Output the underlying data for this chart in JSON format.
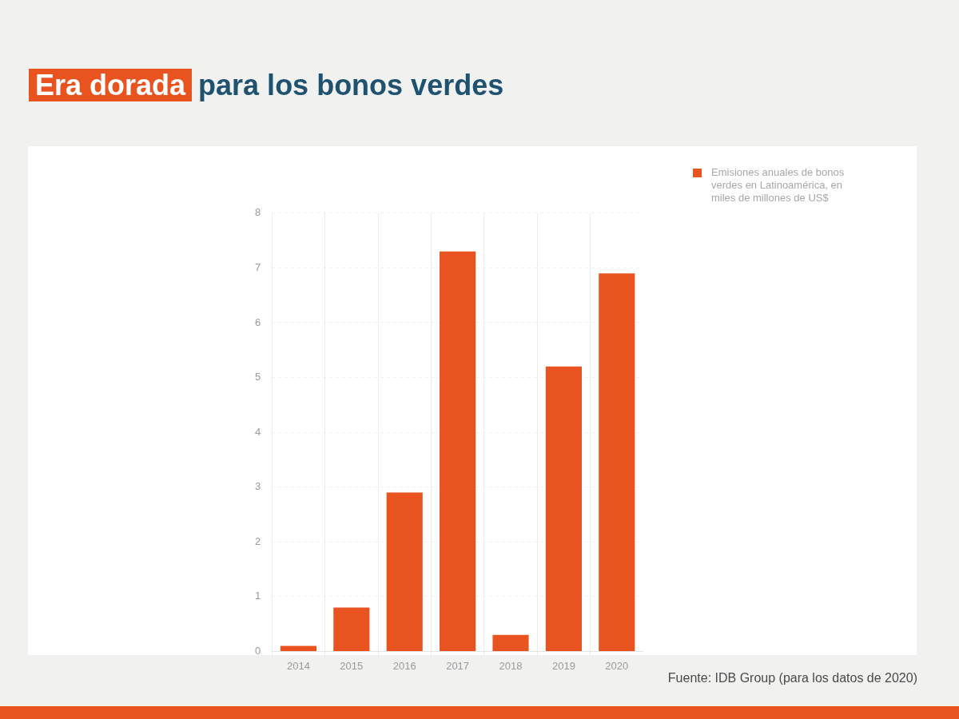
{
  "chart_data": {
    "type": "bar",
    "title": "Era dorada para los bonos verdes",
    "categories": [
      "2014",
      "2015",
      "2016",
      "2017",
      "2018",
      "2019",
      "2020"
    ],
    "series": [
      {
        "name": "Emisiones anuales de bonos verdes en Latinoamérica, en miles de millones de US$",
        "color": "#e8531f",
        "values": [
          0.1,
          0.8,
          2.9,
          7.3,
          0.3,
          5.2,
          6.9
        ]
      }
    ],
    "ylim": [
      0,
      8
    ],
    "yticks": [
      0,
      1,
      2,
      3,
      4,
      5,
      6,
      7,
      8
    ],
    "grid": true,
    "legend": "top right",
    "annotations": [
      "Fuente: IDB Group (para los datos de 2020)"
    ]
  }
}
